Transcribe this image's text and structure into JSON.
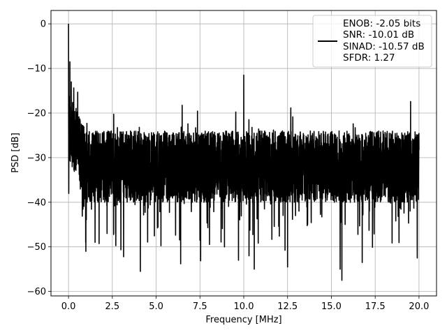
{
  "chart_data": {
    "type": "line",
    "title": "",
    "xlabel": "Frequency [MHz]",
    "ylabel": "PSD [dB]",
    "xlim": [
      -1.0,
      21.0
    ],
    "ylim": [
      -61.0,
      3.0
    ],
    "x_ticks": [
      0.0,
      2.5,
      5.0,
      7.5,
      10.0,
      12.5,
      15.0,
      17.5,
      20.0
    ],
    "x_tick_labels": [
      "0.0",
      "2.5",
      "5.0",
      "7.5",
      "10.0",
      "12.5",
      "15.0",
      "17.5",
      "20.0"
    ],
    "y_ticks": [
      0,
      -10,
      -20,
      -30,
      -40,
      -50,
      -60
    ],
    "y_tick_labels": [
      "0",
      "−10",
      "−20",
      "−30",
      "−40",
      "−50",
      "−60"
    ],
    "grid": true,
    "legend_position": "top-right",
    "series": [
      {
        "color": "#000000",
        "x_range": [
          0.0,
          20.0
        ],
        "noise_floor_db": -32,
        "min_db": -57.5,
        "peaks": [
          {
            "x": 0.0,
            "y": 0.0
          },
          {
            "x": 10.0,
            "y": -11.5
          },
          {
            "x": 0.08,
            "y": -8.5
          },
          {
            "x": 0.16,
            "y": -13.0
          }
        ],
        "deep_dips": [
          {
            "x": 4.1,
            "y": -55.5
          },
          {
            "x": 6.4,
            "y": -53.8
          },
          {
            "x": 15.6,
            "y": -57.5
          },
          {
            "x": 15.5,
            "y": -55.0
          },
          {
            "x": 9.7,
            "y": -53.0
          },
          {
            "x": 12.5,
            "y": -54.5
          },
          {
            "x": 19.9,
            "y": -52.5
          },
          {
            "x": 2.2,
            "y": -47.0
          },
          {
            "x": 10.3,
            "y": -52.0
          },
          {
            "x": 10.6,
            "y": -55.0
          },
          {
            "x": 8.9,
            "y": -50.0
          },
          {
            "x": 7.5,
            "y": -48.5
          }
        ]
      }
    ],
    "legend": {
      "lines": [
        "ENOB: -2.05 bits",
        "SNR: -10.01 dB",
        "SINAD: -10.57 dB",
        "SFDR: 1.27"
      ]
    }
  }
}
